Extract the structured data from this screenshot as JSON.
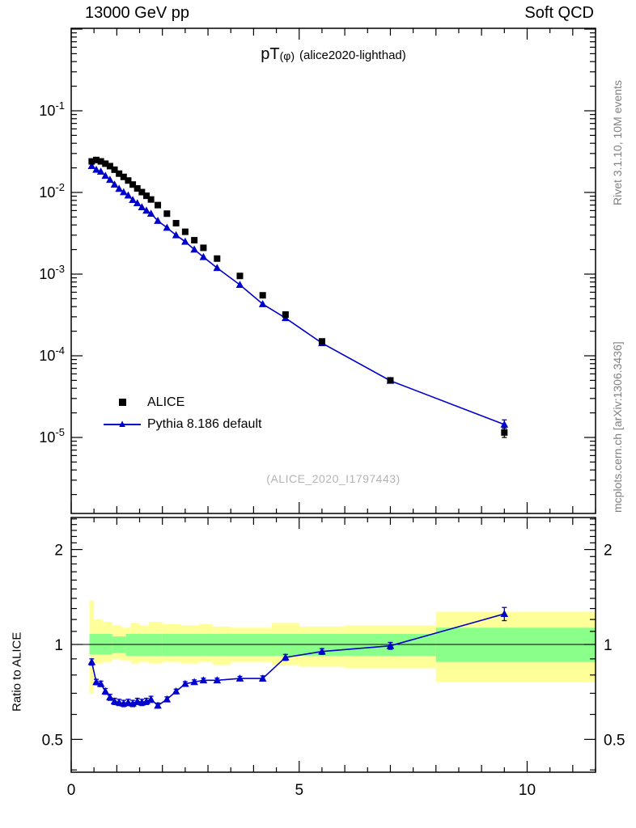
{
  "header": {
    "left_label": "13000 GeV pp",
    "right_label": "Soft QCD"
  },
  "title": {
    "main": "pT",
    "sub": "(φ)",
    "rest": "(alice2020-lighthad)"
  },
  "watermark": "(ALICE_2020_I1797443)",
  "sidebar": {
    "top": "Rivet 3.1.10,  10M events",
    "bottom": "mcplots.cern.ch [arXiv:1306.3436]"
  },
  "legend": {
    "items": [
      {
        "label": "ALICE"
      },
      {
        "label": "Pythia 8.186 default"
      }
    ]
  },
  "axes": {
    "ratio_ylabel": "Ratio to ALICE",
    "x_major_ticks": [
      0,
      5,
      10
    ],
    "main_y_exponents": [
      -1,
      -2,
      -3,
      -4,
      -5
    ],
    "ratio_y_ticks": [
      {
        "v": 2,
        "label": "2"
      },
      {
        "v": 1,
        "label": "1"
      },
      {
        "v": 0.5,
        "label": "0.5"
      }
    ]
  },
  "colors": {
    "alice": "#000000",
    "pythia": "#0000cc",
    "band_outer": "#ffff99",
    "band_inner": "#8aff8a",
    "frame": "#000000",
    "gray_text": "#808080"
  },
  "chart_data": [
    {
      "type": "line",
      "panel": "main",
      "title": "pT(φ) (alice2020-lighthad)",
      "xlabel": "",
      "ylabel": "",
      "x_range": [
        0,
        11.5
      ],
      "y_scale": "log",
      "y_range": [
        1.2e-06,
        1.0
      ],
      "legend_position": "left-middle",
      "x": [
        0.45,
        0.55,
        0.65,
        0.75,
        0.85,
        0.95,
        1.05,
        1.15,
        1.25,
        1.35,
        1.45,
        1.55,
        1.65,
        1.75,
        1.9,
        2.1,
        2.3,
        2.5,
        2.7,
        2.9,
        3.2,
        3.7,
        4.2,
        4.7,
        5.5,
        7.0,
        9.5
      ],
      "series": [
        {
          "name": "ALICE",
          "marker": "square",
          "color": "#000000",
          "draw_line": false,
          "values": [
            0.024,
            0.025,
            0.024,
            0.0225,
            0.021,
            0.019,
            0.017,
            0.0155,
            0.014,
            0.0125,
            0.0112,
            0.0101,
            0.0091,
            0.0082,
            0.007,
            0.0055,
            0.0042,
            0.0033,
            0.0026,
            0.0021,
            0.00155,
            0.00095,
            0.00055,
            0.00032,
            0.00015,
            5e-05,
            1.15e-05
          ],
          "errors": [
            0,
            0,
            0,
            0,
            0,
            0,
            0,
            0,
            0,
            0,
            0,
            0,
            0,
            0,
            0,
            0,
            0,
            0,
            0,
            0,
            0,
            0,
            0,
            0,
            0,
            0,
            1.5e-06
          ]
        },
        {
          "name": "Pythia 8.186 default",
          "marker": "triangle",
          "color": "#0000cc",
          "draw_line": true,
          "values": [
            0.0211,
            0.019,
            0.018,
            0.016,
            0.0143,
            0.0125,
            0.0111,
            0.0101,
            0.0092,
            0.0081,
            0.0074,
            0.0066,
            0.006,
            0.0055,
            0.0045,
            0.0037,
            0.003,
            0.0025,
            0.002,
            0.00162,
            0.00119,
            0.00074,
            0.00043,
            0.00029,
            0.000143,
            4.95e-05,
            1.44e-05
          ],
          "errors": [
            0,
            0,
            0,
            0,
            0,
            0,
            0,
            0,
            0,
            0,
            0,
            0,
            0,
            0,
            0,
            0,
            0,
            0,
            0,
            0,
            0,
            0,
            0,
            0,
            0,
            0,
            2e-06
          ]
        }
      ]
    },
    {
      "type": "line",
      "panel": "ratio",
      "title": "",
      "ylabel": "Ratio to ALICE",
      "y_scale": "log",
      "y_range": [
        0.39,
        2.53
      ],
      "reference_line": 1.0,
      "x": [
        0.45,
        0.55,
        0.65,
        0.75,
        0.85,
        0.95,
        1.05,
        1.15,
        1.25,
        1.35,
        1.45,
        1.55,
        1.65,
        1.75,
        1.9,
        2.1,
        2.3,
        2.5,
        2.7,
        2.9,
        3.2,
        3.7,
        4.2,
        4.7,
        5.5,
        7.0,
        9.5
      ],
      "series": [
        {
          "name": "Pythia 8.186 default / ALICE",
          "marker": "triangle",
          "color": "#0000cc",
          "draw_line": true,
          "values": [
            0.88,
            0.76,
            0.75,
            0.71,
            0.68,
            0.66,
            0.655,
            0.65,
            0.655,
            0.65,
            0.66,
            0.655,
            0.66,
            0.67,
            0.64,
            0.67,
            0.71,
            0.75,
            0.76,
            0.77,
            0.77,
            0.78,
            0.78,
            0.91,
            0.95,
            0.99,
            1.25
          ],
          "errors": [
            0.02,
            0.015,
            0.015,
            0.015,
            0.015,
            0.015,
            0.015,
            0.015,
            0.015,
            0.015,
            0.015,
            0.015,
            0.015,
            0.015,
            0.012,
            0.012,
            0.012,
            0.012,
            0.012,
            0.012,
            0.012,
            0.012,
            0.015,
            0.02,
            0.02,
            0.025,
            0.06
          ]
        }
      ],
      "bands": {
        "outer": [
          {
            "x0": 0.4,
            "x1": 0.5,
            "lo": 0.7,
            "hi": 1.38
          },
          {
            "x0": 0.5,
            "x1": 0.7,
            "lo": 0.87,
            "hi": 1.2
          },
          {
            "x0": 0.7,
            "x1": 0.9,
            "lo": 0.88,
            "hi": 1.18
          },
          {
            "x0": 0.9,
            "x1": 1.1,
            "lo": 0.9,
            "hi": 1.15
          },
          {
            "x0": 1.1,
            "x1": 1.3,
            "lo": 0.89,
            "hi": 1.13
          },
          {
            "x0": 1.3,
            "x1": 1.5,
            "lo": 0.87,
            "hi": 1.17
          },
          {
            "x0": 1.5,
            "x1": 1.7,
            "lo": 0.88,
            "hi": 1.15
          },
          {
            "x0": 1.7,
            "x1": 2.0,
            "lo": 0.87,
            "hi": 1.18
          },
          {
            "x0": 2.0,
            "x1": 2.4,
            "lo": 0.88,
            "hi": 1.16
          },
          {
            "x0": 2.4,
            "x1": 2.8,
            "lo": 0.87,
            "hi": 1.15
          },
          {
            "x0": 2.8,
            "x1": 3.1,
            "lo": 0.88,
            "hi": 1.16
          },
          {
            "x0": 3.1,
            "x1": 3.5,
            "lo": 0.86,
            "hi": 1.14
          },
          {
            "x0": 3.5,
            "x1": 4.4,
            "lo": 0.88,
            "hi": 1.13
          },
          {
            "x0": 4.4,
            "x1": 5.0,
            "lo": 0.86,
            "hi": 1.17
          },
          {
            "x0": 5.0,
            "x1": 6.0,
            "lo": 0.85,
            "hi": 1.14
          },
          {
            "x0": 6.0,
            "x1": 8.0,
            "lo": 0.84,
            "hi": 1.15
          },
          {
            "x0": 8.0,
            "x1": 11.5,
            "lo": 0.76,
            "hi": 1.27
          }
        ],
        "inner": [
          {
            "x0": 0.4,
            "x1": 0.9,
            "lo": 0.93,
            "hi": 1.08
          },
          {
            "x0": 0.9,
            "x1": 1.2,
            "lo": 0.94,
            "hi": 1.06
          },
          {
            "x0": 1.2,
            "x1": 2.0,
            "lo": 0.92,
            "hi": 1.08
          },
          {
            "x0": 2.0,
            "x1": 8.0,
            "lo": 0.92,
            "hi": 1.08
          },
          {
            "x0": 8.0,
            "x1": 11.5,
            "lo": 0.88,
            "hi": 1.13
          }
        ]
      }
    }
  ]
}
